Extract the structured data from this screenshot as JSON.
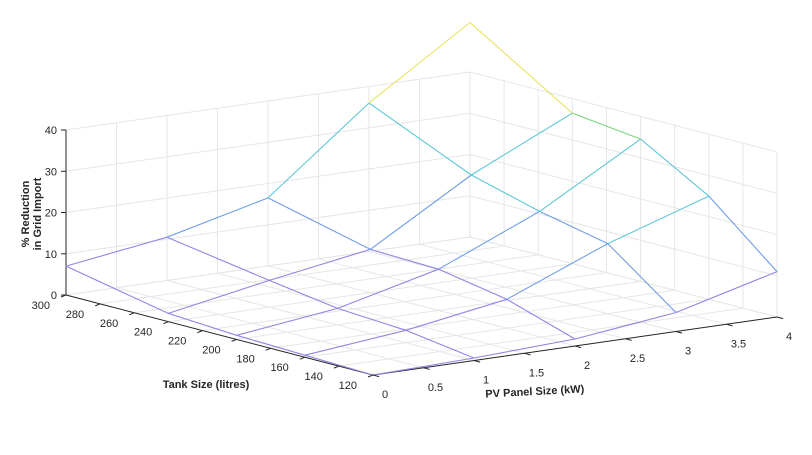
{
  "chart_data": {
    "type": "surface",
    "x": [
      0,
      1,
      2,
      3,
      4
    ],
    "y": [
      120,
      160,
      200,
      240,
      300
    ],
    "z": [
      [
        0.0,
        0.6,
        1.7,
        4.6,
        11.0
      ],
      [
        0.5,
        3.0,
        7.0,
        17.0,
        25.0
      ],
      [
        1.0,
        4.0,
        10.0,
        20.5,
        34.5
      ],
      [
        2.0,
        6.5,
        10.5,
        25.0,
        36.5
      ],
      [
        7.0,
        10.5,
        16.5,
        36.0,
        52.0
      ]
    ],
    "xlabel": "PV Panel Size (kW)",
    "ylabel": "Tank Size (litres)",
    "zlabel_line1": "% Reduction",
    "zlabel_line2": "in Grid Import",
    "xlim": [
      0,
      4
    ],
    "ylim": [
      120,
      300
    ],
    "zlim": [
      0,
      40
    ],
    "x_ticks": [
      "0",
      "0.5",
      "1",
      "1.5",
      "2",
      "2.5",
      "3",
      "3.5",
      "4"
    ],
    "y_ticks": [
      "120",
      "140",
      "160",
      "180",
      "200",
      "220",
      "240",
      "260",
      "280",
      "300"
    ],
    "z_ticks": [
      "0",
      "10",
      "20",
      "30",
      "40"
    ],
    "grid": true,
    "colormap": [
      "#8f86e6",
      "#6f9fe6",
      "#5fc8d8",
      "#79d77f",
      "#e8e260"
    ]
  }
}
